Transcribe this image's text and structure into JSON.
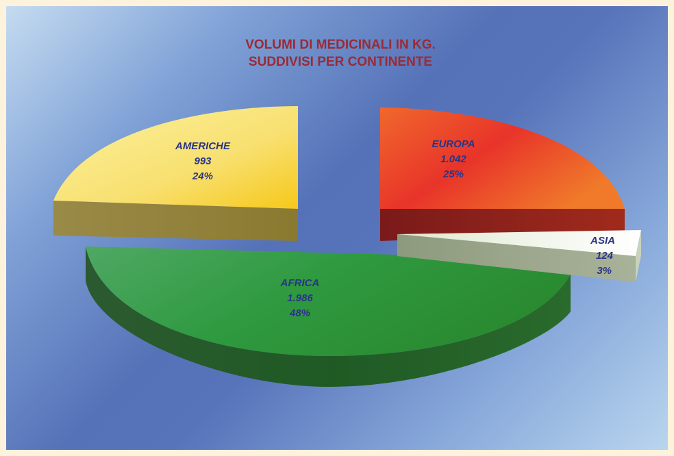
{
  "chart_data": {
    "type": "pie",
    "title_lines": [
      "VOLUMI DI MEDICINALI IN KG.",
      "SUDDIVISI PER CONTINENTE"
    ],
    "slices": [
      {
        "name": "EUROPA",
        "value": 1042,
        "value_label": "1.042",
        "percent_label": "25%",
        "color": "#e8502a"
      },
      {
        "name": "ASIA",
        "value": 124,
        "value_label": "124",
        "percent_label": "3%",
        "color": "#f2f5e8"
      },
      {
        "name": "AFRICA",
        "value": 1986,
        "value_label": "1.986",
        "percent_label": "48%",
        "color": "#2e8f3c"
      },
      {
        "name": "AMERICHE",
        "value": 993,
        "value_label": "993",
        "percent_label": "24%",
        "color": "#f7d94a"
      }
    ],
    "style": "3d-exploded"
  }
}
